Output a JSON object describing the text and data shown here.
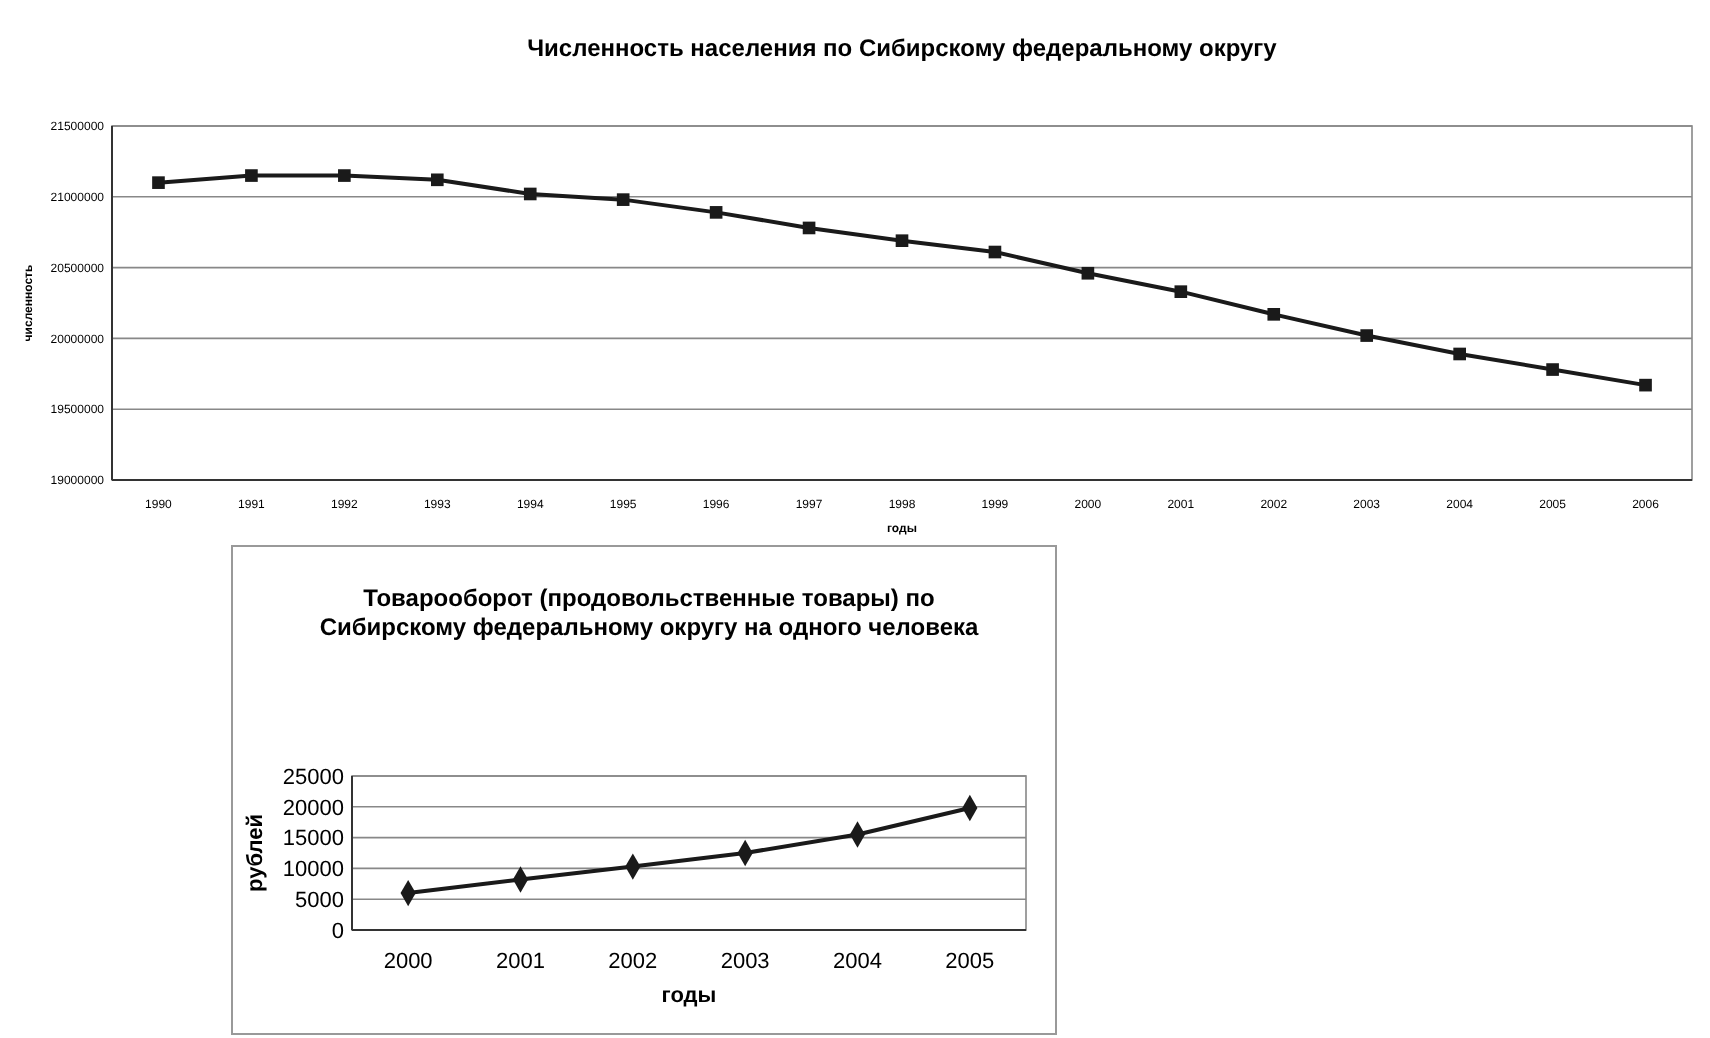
{
  "chart_data": [
    {
      "type": "line",
      "title": "Численность населения по Сибирскому федеральному округу",
      "xlabel": "годы",
      "ylabel": "численность",
      "categories": [
        "1990",
        "1991",
        "1992",
        "1993",
        "1994",
        "1995",
        "1996",
        "1997",
        "1998",
        "1999",
        "2000",
        "2001",
        "2002",
        "2003",
        "2004",
        "2005",
        "2006"
      ],
      "series": [
        {
          "color": "#1a1a1a",
          "values": [
            21100000,
            21150000,
            21150000,
            21120000,
            21020000,
            20980000,
            20890000,
            20780000,
            20690000,
            20610000,
            20460000,
            20330000,
            20170000,
            20020000,
            19890000,
            19780000,
            19670000
          ]
        }
      ],
      "ylim": [
        19000000,
        21500000
      ],
      "yticks": [
        19000000,
        19500000,
        20000000,
        20500000,
        21000000,
        21500000
      ],
      "grid": "y",
      "marker": "square",
      "line_style": "solid"
    },
    {
      "type": "line",
      "title": "Товарооборот (продовольственные товары) по Сибирскому федеральному округу на одного человека",
      "xlabel": "годы",
      "ylabel": "рублей",
      "categories": [
        "2000",
        "2001",
        "2002",
        "2003",
        "2004",
        "2005"
      ],
      "series": [
        {
          "color": "#1a1a1a",
          "values": [
            6000,
            8200,
            10300,
            12500,
            15500,
            19800
          ]
        }
      ],
      "ylim": [
        0,
        25000
      ],
      "yticks": [
        0,
        5000,
        10000,
        15000,
        20000,
        25000
      ],
      "grid": "y",
      "marker": "diamond",
      "line_style": "solid"
    }
  ]
}
